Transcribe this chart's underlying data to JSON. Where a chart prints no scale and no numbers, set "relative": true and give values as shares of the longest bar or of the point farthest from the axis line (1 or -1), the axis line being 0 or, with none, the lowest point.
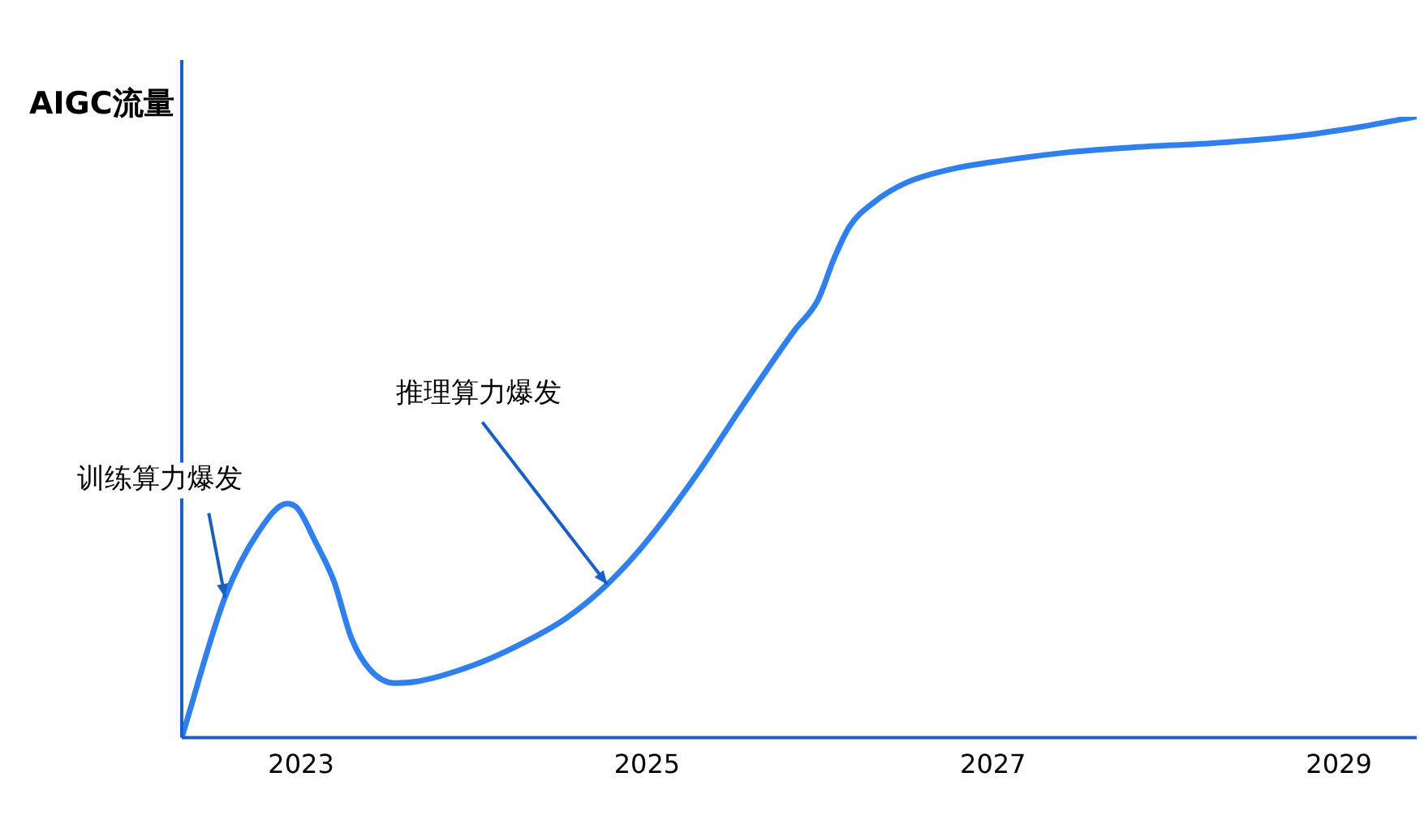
{
  "chart_data": {
    "type": "line",
    "relative": true,
    "ylabel": "AIGC流量",
    "grid": false,
    "legend": false,
    "marker": "none",
    "line_style": "solid",
    "xlim": [
      2022.31,
      2029.45
    ],
    "xticks": [
      2023,
      2025,
      2027,
      2029
    ],
    "annotations": [
      {
        "text": "训练算力爆发",
        "x": 2022.56,
        "y": 0.226
      },
      {
        "text": "推理算力爆发",
        "x": 2024.77,
        "y": 0.247
      }
    ],
    "series": [
      {
        "color": "#2f80ed",
        "x": [
          2022.31,
          2022.56,
          2022.75,
          2022.92,
          2022.98,
          2023.08,
          2023.19,
          2023.29,
          2023.4,
          2023.54,
          2023.68,
          2023.97,
          2024.25,
          2024.53,
          2024.77,
          2025.0,
          2025.28,
          2025.56,
          2025.85,
          2025.99,
          2026.08,
          2026.17,
          2026.31,
          2026.5,
          2026.78,
          2027.07,
          2027.44,
          2027.82,
          2028.29,
          2028.76,
          2029.13,
          2029.44
        ],
        "values": [
          0,
          0.226,
          0.33,
          0.377,
          0.369,
          0.317,
          0.252,
          0.161,
          0.109,
          0.088,
          0.091,
          0.114,
          0.148,
          0.192,
          0.247,
          0.317,
          0.421,
          0.538,
          0.655,
          0.706,
          0.771,
          0.823,
          0.862,
          0.894,
          0.917,
          0.93,
          0.943,
          0.951,
          0.958,
          0.969,
          0.984,
          1
        ]
      }
    ]
  }
}
